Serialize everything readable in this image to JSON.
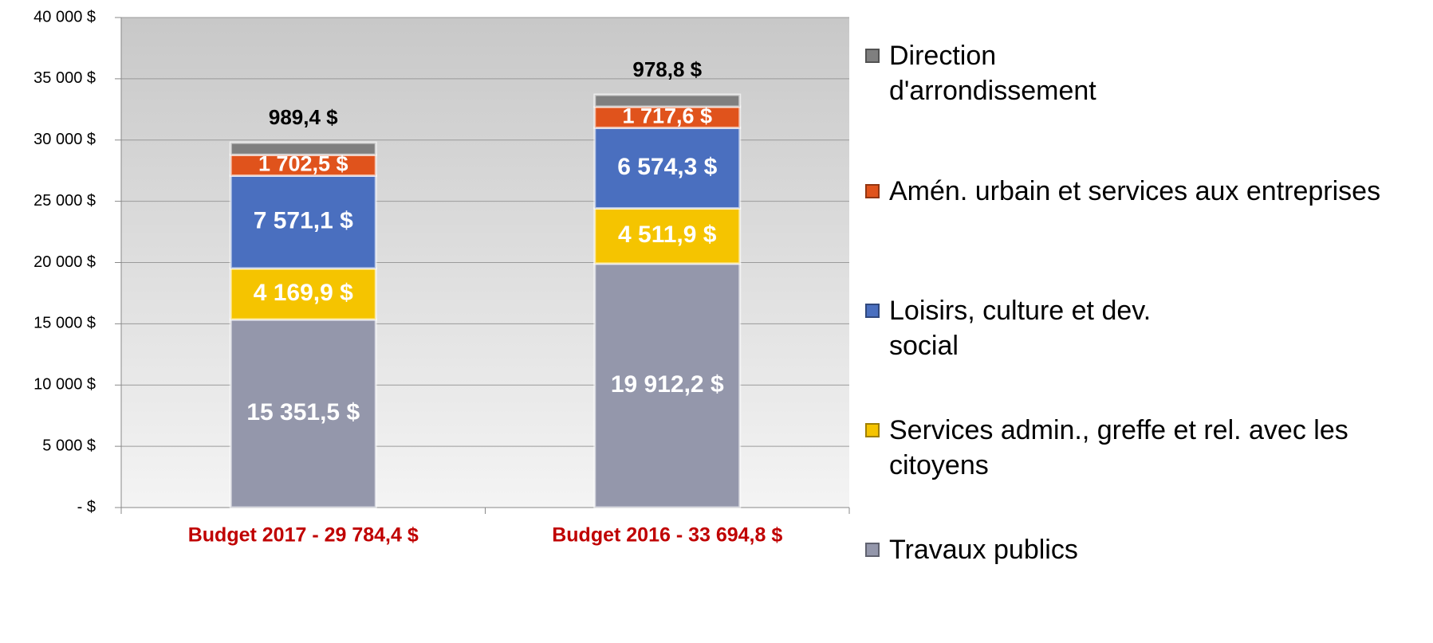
{
  "chart_data": {
    "type": "stacked_bar",
    "categories": [
      "Budget 2017 - 29 784,4 $",
      "Budget 2016 - 33 694,8 $"
    ],
    "series": [
      {
        "name": "Travaux publics",
        "color": "#9497ab",
        "values": [
          15351.5,
          19912.2
        ],
        "value_labels": [
          "15 351,5 $",
          "19 912,2 $"
        ]
      },
      {
        "name": "Services admin., greffe et rel. avec les citoyens",
        "color": "#f5c400",
        "values": [
          4169.9,
          4511.9
        ],
        "value_labels": [
          "4 169,9 $",
          "4 511,9 $"
        ]
      },
      {
        "name": "Loisirs, culture et dev. social",
        "color": "#4a6fbf",
        "values": [
          7571.1,
          6574.3
        ],
        "value_labels": [
          "7 571,1 $",
          "6 574,3 $"
        ]
      },
      {
        "name": "Amén. urbain et services aux entreprises",
        "color": "#e0531c",
        "values": [
          1702.5,
          1717.6
        ],
        "value_labels": [
          "1 702,5 $",
          "1 717,6 $"
        ]
      },
      {
        "name": "Direction d'arrondissement",
        "color": "#7f7f7f",
        "values": [
          989.4,
          978.8
        ],
        "value_labels": [
          "989,4 $",
          "978,8 $"
        ]
      }
    ],
    "ylim": [
      0,
      40000
    ],
    "yticks": [
      {
        "value": 0,
        "label": "-  $"
      },
      {
        "value": 5000,
        "label": "5 000 $"
      },
      {
        "value": 10000,
        "label": "10 000 $"
      },
      {
        "value": 15000,
        "label": "15 000 $"
      },
      {
        "value": 20000,
        "label": "20 000 $"
      },
      {
        "value": 25000,
        "label": "25 000 $"
      },
      {
        "value": 30000,
        "label": "30 000 $"
      },
      {
        "value": 35000,
        "label": "35 000 $"
      },
      {
        "value": 40000,
        "label": "40 000 $"
      }
    ],
    "grid": true
  }
}
